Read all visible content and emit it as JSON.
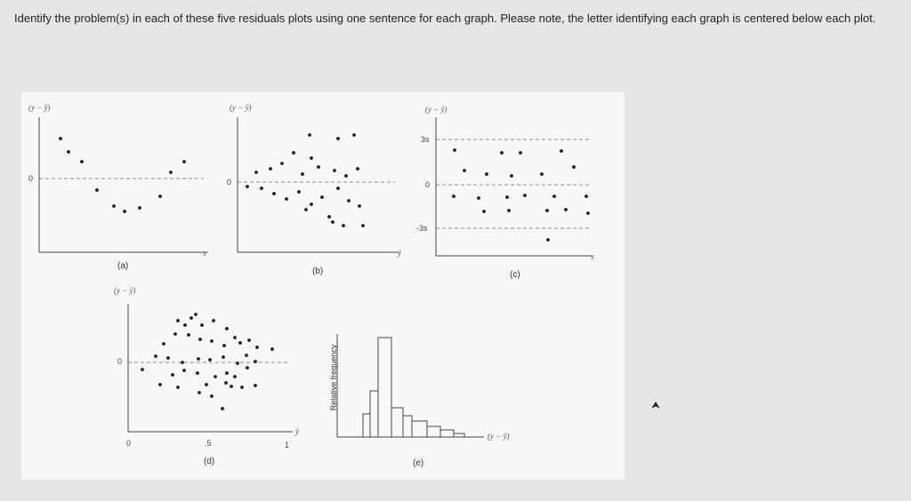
{
  "question": {
    "text": "Identify the problem(s) in each of these five residuals plots using one sentence for each graph.  Please note, the letter identifying each graph is centered below each plot."
  },
  "plots": {
    "a": {
      "caption": "(a)",
      "ylabel": "(y − ŷ)",
      "xlabel": "x",
      "zero": "0"
    },
    "b": {
      "caption": "(b)",
      "ylabel": "(y − ŷ)",
      "xlabel": "ŷ",
      "zero": "0"
    },
    "c": {
      "caption": "(c)",
      "ylabel": "(y − ŷ)",
      "xlabel": "x",
      "zero": "0",
      "upper": "3s",
      "lower": "-3s"
    },
    "d": {
      "caption": "(d)",
      "ylabel": "(y − ŷ)",
      "xlabel": "ŷ",
      "zero": "0",
      "x0": "0",
      "xmid": ".5",
      "x1": "1"
    },
    "e": {
      "caption": "(e)",
      "ylabel": "Relative frequency",
      "xlabel": "(y − ŷ)"
    }
  },
  "colors": {
    "point": "#1a1a1a",
    "axis": "#444444",
    "dash": "#888888"
  },
  "icons": {
    "cursor": "arrow-cursor-icon"
  }
}
